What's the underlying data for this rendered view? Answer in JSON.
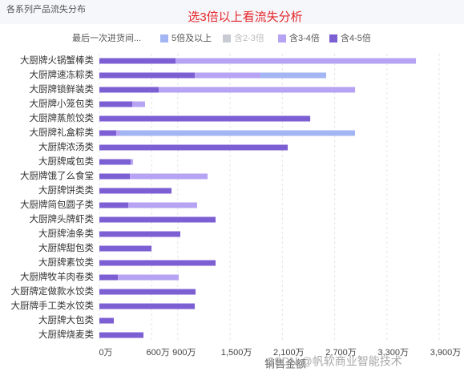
{
  "chart_data": {
    "type": "bar",
    "orientation": "horizontal",
    "stacked": true,
    "panel_title": "各系列产品流失分布",
    "title": "选3倍以上看流失分析",
    "legend_title": "最后一次进货间...",
    "x_label": "销售金额",
    "watermark": "CSDN @帆软商业智能技术",
    "categories": [
      "大厨牌火锅蟹棒类",
      "大厨牌速冻粽类",
      "大厨牌锁鲜装类",
      "大厨牌小笼包类",
      "大厨牌蒸煎饺类",
      "大厨牌礼盒粽类",
      "大厨牌浓汤类",
      "大厨牌咸包类",
      "大厨牌饿了么食堂",
      "大厨牌饼类类",
      "大厨牌简包圆子类",
      "大厨牌头牌虾类",
      "大厨牌油条类",
      "大厨牌甜包类",
      "大厨牌素饺类",
      "大厨牌牧羊肉卷类",
      "大厨牌定做款水饺类",
      "大厨牌手工类水饺类",
      "大厨牌大包类",
      "大厨牌烧麦类"
    ],
    "series": [
      {
        "name": "5倍及以上",
        "color": "#a3b5f2",
        "values": [
          null,
          754,
          null,
          null,
          null,
          2695,
          null,
          null,
          null,
          null,
          null,
          null,
          null,
          null,
          null,
          null,
          null,
          null,
          null,
          null
        ]
      },
      {
        "name": "含2-3倍",
        "color": "#c8cbd3",
        "hidden": true,
        "values": [
          null,
          null,
          null,
          null,
          null,
          null,
          null,
          null,
          null,
          null,
          null,
          null,
          null,
          null,
          null,
          null,
          null,
          null,
          null,
          null
        ]
      },
      {
        "name": "含3-4倍",
        "color": "#b7a3f3",
        "values": [
          2760,
          754,
          2254,
          147,
          null,
          46,
          null,
          28,
          892,
          null,
          791,
          null,
          null,
          null,
          null,
          699,
          null,
          null,
          null,
          null
        ]
      },
      {
        "name": "含4-5倍",
        "color": "#7c5fd3",
        "values": [
          874,
          1095,
          681,
          377,
          2420,
          193,
          2162,
          359,
          350,
          828,
          331,
          1334,
          929,
          598,
          1334,
          212,
          1104,
          1095,
          166,
          506
        ]
      }
    ],
    "xlim": [
      0,
      3900
    ],
    "xticks": [
      {
        "value": 0,
        "label": "0万"
      },
      {
        "value": 600,
        "label": "600万"
      },
      {
        "value": 900,
        "label": "900万"
      },
      {
        "value": 1500,
        "label": "1,500万"
      },
      {
        "value": 2100,
        "label": "2,100万"
      },
      {
        "value": 2700,
        "label": "2,700万"
      },
      {
        "value": 3300,
        "label": "3,300万"
      },
      {
        "value": 3900,
        "label": "3,900万"
      }
    ],
    "grid": true
  }
}
